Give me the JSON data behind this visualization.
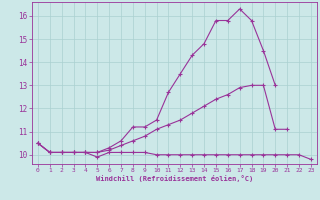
{
  "x": [
    0,
    1,
    2,
    3,
    4,
    5,
    6,
    7,
    8,
    9,
    10,
    11,
    12,
    13,
    14,
    15,
    16,
    17,
    18,
    19,
    20,
    21,
    22,
    23
  ],
  "line1": [
    10.5,
    10.1,
    10.1,
    10.1,
    10.1,
    9.9,
    10.1,
    10.1,
    10.1,
    10.1,
    10.0,
    10.0,
    10.0,
    10.0,
    10.0,
    10.0,
    10.0,
    10.0,
    10.0,
    10.0,
    10.0,
    10.0,
    10.0,
    9.8
  ],
  "line2": [
    10.5,
    10.1,
    10.1,
    10.1,
    10.1,
    10.1,
    10.2,
    10.4,
    10.6,
    10.8,
    11.1,
    11.3,
    11.5,
    11.8,
    12.1,
    12.4,
    12.6,
    12.9,
    13.0,
    13.0,
    11.1,
    11.1,
    null,
    null
  ],
  "line3": [
    10.5,
    10.1,
    10.1,
    10.1,
    10.1,
    10.1,
    10.3,
    10.6,
    11.2,
    11.2,
    11.5,
    12.7,
    13.5,
    14.3,
    14.8,
    15.8,
    15.8,
    16.3,
    15.8,
    14.5,
    13.0,
    null,
    null,
    null
  ],
  "color": "#993399",
  "background": "#cce8e8",
  "grid_color": "#aad0d0",
  "xlabel": "Windchill (Refroidissement éolien,°C)",
  "ylim": [
    9.6,
    16.6
  ],
  "xlim": [
    -0.5,
    23.5
  ],
  "yticks": [
    10,
    11,
    12,
    13,
    14,
    15,
    16
  ],
  "xticks": [
    0,
    1,
    2,
    3,
    4,
    5,
    6,
    7,
    8,
    9,
    10,
    11,
    12,
    13,
    14,
    15,
    16,
    17,
    18,
    19,
    20,
    21,
    22,
    23
  ]
}
